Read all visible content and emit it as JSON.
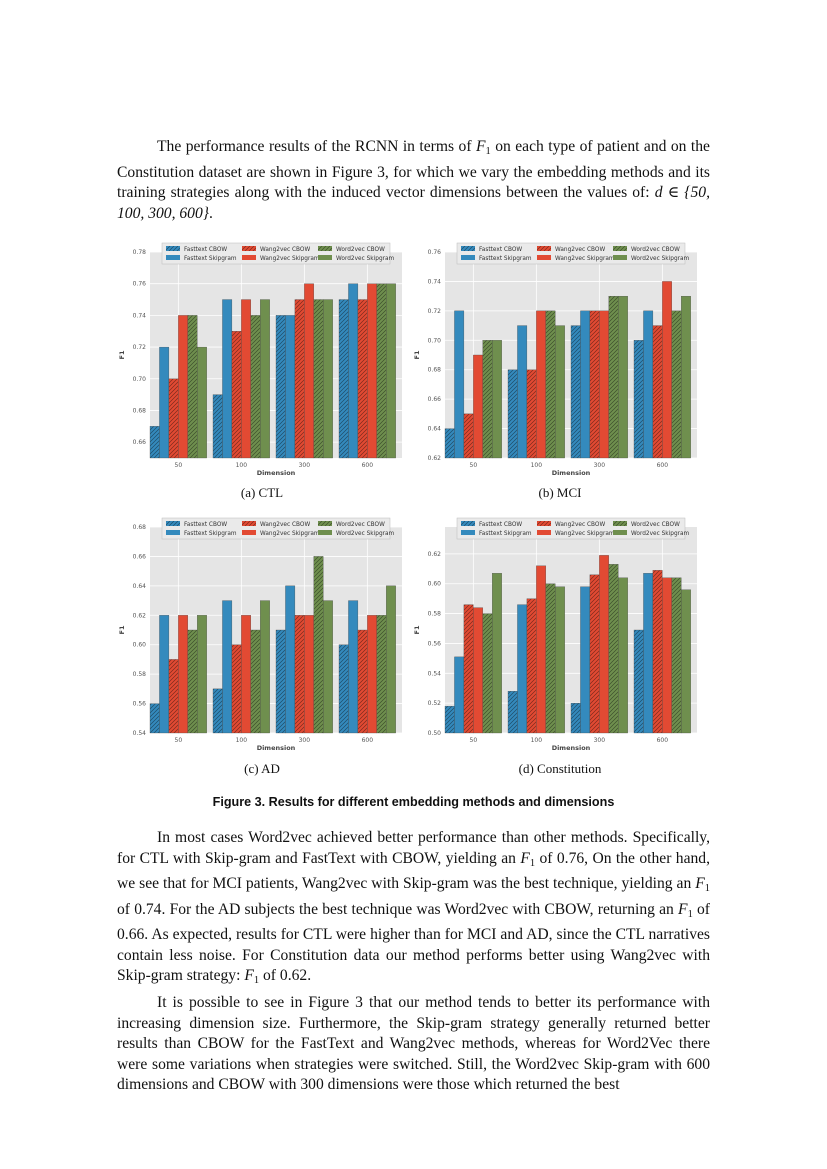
{
  "paragraphs": {
    "p1": {
      "a": "The performance results of the RCNN in terms of ",
      "f_symbol": "F",
      "f_sub": "1",
      "b": " on each type of patient and on the Constitution dataset are shown in Figure 3, for which we vary the embedding methods and its training strategies along with the induced vector dimensions between the values of: ",
      "math": "d ∈ {50, 100, 300, 600}",
      "c": "."
    },
    "p2": {
      "a": "In most cases Word2vec achieved better performance than other methods. Specif­ically, for CTL with Skip-gram and FastText with CBOW, yielding an ",
      "v1": "0.76",
      "b": ", On the other hand, we see that for MCI patients, Wang2vec with Skip-gram was the best tech­nique, yielding an ",
      "v2": "0.74",
      "c": ". For the AD subjects the best technique was Word2vec with CBOW, returning an ",
      "v3": "0.66",
      "d": ". As expected, results for CTL were higher than for MCI and AD, since the CTL narratives contain less noise. For Constitution data our method performs better using Wang2vec with Skip-gram strategy: ",
      "v4": "0.62",
      "e": ".",
      "of": " of "
    },
    "p3": "It is possible to see in Figure 3 that our method tends to better its performance with increasing dimension size. Furthermore, the Skip-gram strategy generally returned better results than CBOW for the FastText and Wang2vec methods, whereas for Word2Vec there were some variations when strategies were switched. Still, the Word2vec Skip-gram with 600 dimensions and CBOW with 300 dimensions were those which returned the best"
  },
  "figure": {
    "caption": "Figure 3. Results for different embedding methods and dimensions",
    "subcaptions": [
      "(a)  CTL",
      "(b)  MCI",
      "(c)  AD",
      "(d)  Constitution"
    ]
  },
  "colors": {
    "fasttext": "#348ABD",
    "wang2vec": "#E24A33",
    "word2vec": "#6F8F4E",
    "background": "#E5E5E5"
  },
  "chart_data": [
    {
      "type": "bar",
      "title": "",
      "xlabel": "Dimension",
      "ylabel": "F1",
      "categories": [
        "50",
        "100",
        "300",
        "600"
      ],
      "ylim": [
        0.65,
        0.78
      ],
      "yticks": [
        "0.66",
        "0.68",
        "0.70",
        "0.72",
        "0.74",
        "0.76",
        "0.78"
      ],
      "grid": true,
      "legend": "top",
      "series": [
        {
          "name": "Fasttext CBOW",
          "values": [
            0.67,
            0.69,
            0.74,
            0.75
          ]
        },
        {
          "name": "Fasttext Skipgram",
          "values": [
            0.72,
            0.75,
            0.74,
            0.76
          ]
        },
        {
          "name": "Wang2vec CBOW",
          "values": [
            0.7,
            0.73,
            0.75,
            0.75
          ]
        },
        {
          "name": "Wang2vec Skipgram",
          "values": [
            0.74,
            0.75,
            0.76,
            0.76
          ]
        },
        {
          "name": "Word2vec CBOW",
          "values": [
            0.74,
            0.74,
            0.75,
            0.76
          ]
        },
        {
          "name": "Word2vec Skipgram",
          "values": [
            0.72,
            0.75,
            0.75,
            0.76
          ]
        }
      ]
    },
    {
      "type": "bar",
      "title": "",
      "xlabel": "Dimension",
      "ylabel": "F1",
      "categories": [
        "50",
        "100",
        "300",
        "600"
      ],
      "ylim": [
        0.62,
        0.76
      ],
      "yticks": [
        "0.62",
        "0.64",
        "0.66",
        "0.68",
        "0.70",
        "0.72",
        "0.74",
        "0.76"
      ],
      "grid": true,
      "legend": "top",
      "series": [
        {
          "name": "Fasttext CBOW",
          "values": [
            0.64,
            0.68,
            0.71,
            0.7
          ]
        },
        {
          "name": "Fasttext Skipgram",
          "values": [
            0.72,
            0.71,
            0.72,
            0.72
          ]
        },
        {
          "name": "Wang2vec CBOW",
          "values": [
            0.65,
            0.68,
            0.72,
            0.71
          ]
        },
        {
          "name": "Wang2vec Skipgram",
          "values": [
            0.69,
            0.72,
            0.72,
            0.74
          ]
        },
        {
          "name": "Word2vec CBOW",
          "values": [
            0.7,
            0.72,
            0.73,
            0.72
          ]
        },
        {
          "name": "Word2vec Skipgram",
          "values": [
            0.7,
            0.71,
            0.73,
            0.73
          ]
        }
      ]
    },
    {
      "type": "bar",
      "title": "",
      "xlabel": "Dimension",
      "ylabel": "F1",
      "categories": [
        "50",
        "100",
        "300",
        "600"
      ],
      "ylim": [
        0.54,
        0.68
      ],
      "yticks": [
        "0.54",
        "0.56",
        "0.58",
        "0.60",
        "0.62",
        "0.64",
        "0.66",
        "0.68"
      ],
      "grid": true,
      "legend": "top",
      "series": [
        {
          "name": "Fasttext CBOW",
          "values": [
            0.56,
            0.57,
            0.61,
            0.6
          ]
        },
        {
          "name": "Fasttext Skipgram",
          "values": [
            0.62,
            0.63,
            0.64,
            0.63
          ]
        },
        {
          "name": "Wang2vec CBOW",
          "values": [
            0.59,
            0.6,
            0.62,
            0.61
          ]
        },
        {
          "name": "Wang2vec Skipgram",
          "values": [
            0.62,
            0.62,
            0.62,
            0.62
          ]
        },
        {
          "name": "Word2vec CBOW",
          "values": [
            0.61,
            0.61,
            0.66,
            0.62
          ]
        },
        {
          "name": "Word2vec Skipgram",
          "values": [
            0.62,
            0.63,
            0.63,
            0.64
          ]
        }
      ]
    },
    {
      "type": "bar",
      "title": "",
      "xlabel": "Dimension",
      "ylabel": "F1",
      "categories": [
        "50",
        "100",
        "300",
        "600"
      ],
      "ylim": [
        0.5,
        0.638
      ],
      "yticks": [
        "0.50",
        "0.52",
        "0.54",
        "0.56",
        "0.58",
        "0.60",
        "0.62"
      ],
      "grid": true,
      "legend": "top",
      "series": [
        {
          "name": "Fasttext CBOW",
          "values": [
            0.518,
            0.528,
            0.52,
            0.569
          ]
        },
        {
          "name": "Fasttext Skipgram",
          "values": [
            0.551,
            0.586,
            0.598,
            0.607
          ]
        },
        {
          "name": "Wang2vec CBOW",
          "values": [
            0.586,
            0.59,
            0.606,
            0.609
          ]
        },
        {
          "name": "Wang2vec Skipgram",
          "values": [
            0.584,
            0.612,
            0.619,
            0.604
          ]
        },
        {
          "name": "Word2vec CBOW",
          "values": [
            0.58,
            0.6,
            0.613,
            0.604
          ]
        },
        {
          "name": "Word2vec Skipgram",
          "values": [
            0.607,
            0.598,
            0.604,
            0.596
          ]
        }
      ]
    }
  ]
}
